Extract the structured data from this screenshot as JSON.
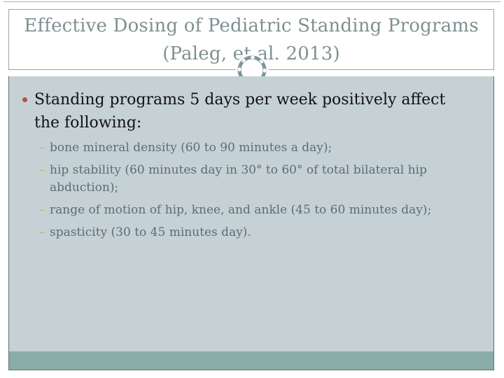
{
  "slide": {
    "title": {
      "lines": [
        "Effective Dosing of Pediatric Standing Programs",
        "(Paleg, et.al. 2013)"
      ]
    },
    "bullet": {
      "lines": [
        "Standing programs 5 days per week positively affect",
        "the following:"
      ]
    },
    "sub_bullets": [
      {
        "marker": "–",
        "lines": [
          "bone mineral density (60 to 90 minutes a day);"
        ]
      },
      {
        "marker": "–",
        "lines": [
          "hip stability (60 minutes day in 30° to 60° of total bilateral hip",
          "abduction);"
        ]
      },
      {
        "marker": "–",
        "lines": [
          "range of motion of hip, knee, and ankle (45 to 60 minutes day);"
        ]
      },
      {
        "marker": "–",
        "lines": [
          "spasticity (30 to 45 minutes day)."
        ]
      }
    ],
    "colors": {
      "title_text": "#7e9191",
      "title_border": "#97a5a5",
      "panel_background": "#c6d1d5",
      "panel_border": "#5f716f",
      "footer_band": "#8badaa",
      "circle_ring": "#7c9694",
      "bullet_dot": "#ae544b",
      "sub_dash": "#beb35c",
      "sub_text": "#5d6c79",
      "body_text": "#121212"
    }
  }
}
